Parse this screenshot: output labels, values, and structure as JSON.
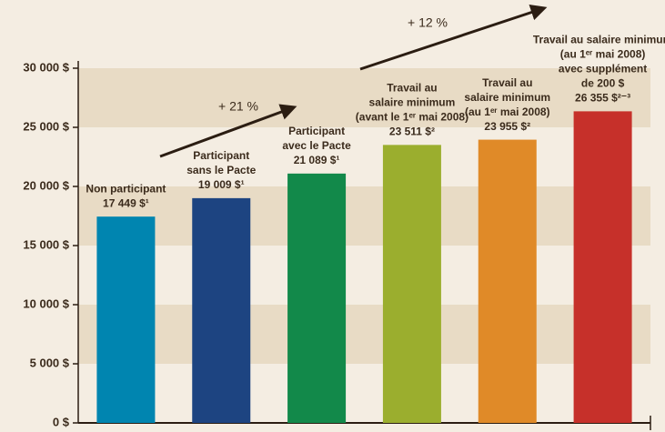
{
  "chart_data": {
    "type": "bar",
    "categories": [
      [
        "Non participant"
      ],
      [
        "Participant",
        "sans le Pacte"
      ],
      [
        "Participant",
        "avec le Pacte"
      ],
      [
        "Travail au",
        "salaire minimum",
        "(avant le 1ᵉʳ mai 2008)"
      ],
      [
        "Travail au",
        "salaire minimum",
        "(au 1ᵉʳ mai 2008)"
      ],
      [
        "Travail au salaire minimum",
        "(au 1ᵉʳ mai 2008)",
        "avec supplément",
        "de 200 $"
      ]
    ],
    "values": [
      17449,
      19009,
      21089,
      23511,
      23955,
      26355
    ],
    "value_labels": [
      "17 449 $¹",
      "19 009 $¹",
      "21 089 $¹",
      "23 511 $²",
      "23 955 $²",
      "26 355 $²⁻³"
    ],
    "colors": [
      "#0085b0",
      "#1d4481",
      "#12894a",
      "#9bae2e",
      "#e08a28",
      "#c6302a"
    ],
    "ylim": [
      0,
      30000
    ],
    "yticks": [
      {
        "value": 0,
        "label": "0 $"
      },
      {
        "value": 5000,
        "label": "5 000 $"
      },
      {
        "value": 10000,
        "label": "10 000 $"
      },
      {
        "value": 15000,
        "label": "15 000 $"
      },
      {
        "value": 20000,
        "label": "20 000 $"
      },
      {
        "value": 25000,
        "label": "25 000 $"
      },
      {
        "value": 30000,
        "label": "30 000 $"
      }
    ],
    "annotations": [
      "+ 21 %",
      "+ 12 %"
    ],
    "grid": "bands"
  }
}
